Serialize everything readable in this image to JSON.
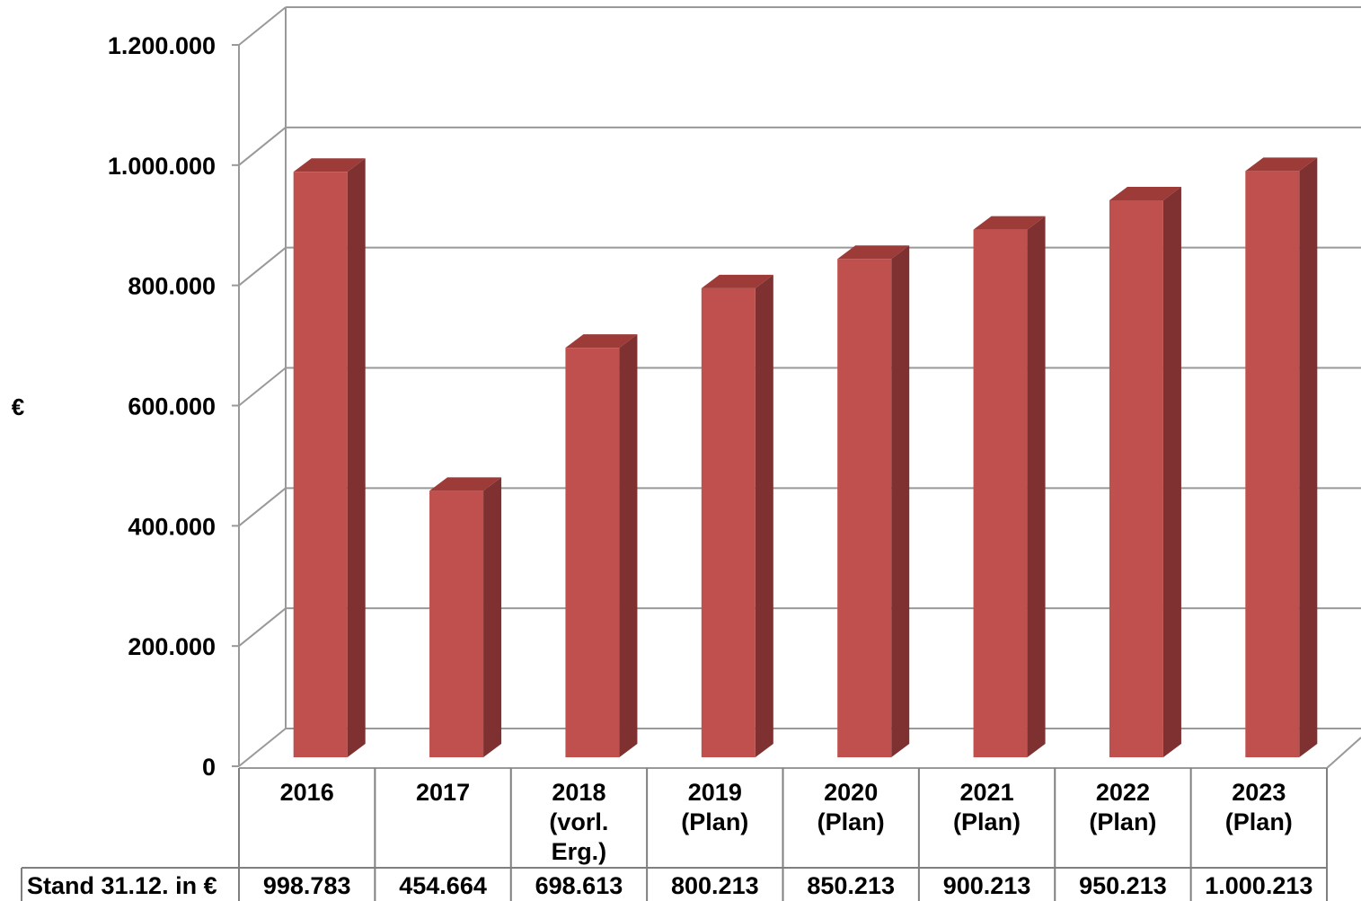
{
  "chart_data": {
    "type": "bar",
    "style": "3d-column-with-data-table",
    "ylabel": "€",
    "ylim": [
      0,
      1200000
    ],
    "yticks": [
      "0",
      "200.000",
      "400.000",
      "600.000",
      "800.000",
      "1.000.000",
      "1.200.000"
    ],
    "categories": [
      [
        "2016"
      ],
      [
        "2017"
      ],
      [
        "2018",
        "(vorl.",
        "Erg.)"
      ],
      [
        "2019",
        "(Plan)"
      ],
      [
        "2020",
        "(Plan)"
      ],
      [
        "2021",
        "(Plan)"
      ],
      [
        "2022",
        "(Plan)"
      ],
      [
        "2023",
        "(Plan)"
      ]
    ],
    "series": [
      {
        "name": "Stand 31.12. in €",
        "values": [
          998783,
          454664,
          698613,
          800213,
          850213,
          900213,
          950213,
          1000213
        ],
        "labels": [
          "998.783",
          "454.664",
          "698.613",
          "800.213",
          "850.213",
          "900.213",
          "950.213",
          "1.000.213"
        ]
      }
    ],
    "grid": true,
    "colors": {
      "bar_front": "#c0504d",
      "bar_side": "#7f3030",
      "bar_top": "#9c3b38",
      "grid": "#999999"
    }
  }
}
